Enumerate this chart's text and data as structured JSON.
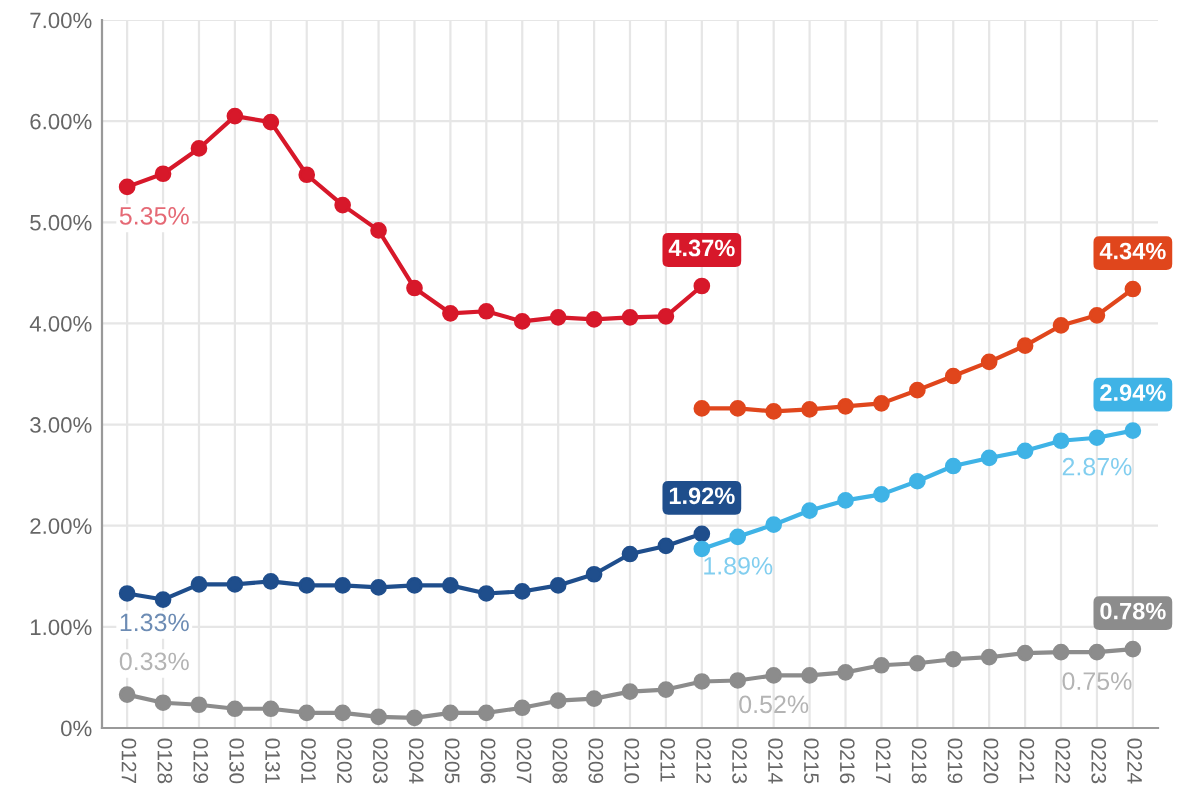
{
  "chart_data": {
    "type": "line",
    "categories": [
      "0127",
      "0128",
      "0129",
      "0130",
      "0131",
      "0201",
      "0202",
      "0203",
      "0204",
      "0205",
      "0206",
      "0207",
      "0208",
      "0209",
      "0210",
      "0211",
      "0212",
      "0213",
      "0214",
      "0215",
      "0216",
      "0217",
      "0218",
      "0219",
      "0220",
      "0221",
      "0222",
      "0223",
      "0224"
    ],
    "series": [
      {
        "color": "#d7182a",
        "values": [
          5.35,
          5.48,
          5.73,
          6.05,
          5.99,
          5.47,
          5.17,
          4.92,
          4.35,
          4.1,
          4.12,
          4.02,
          4.06,
          4.04,
          4.06,
          4.07,
          4.37,
          null,
          null,
          null,
          null,
          null,
          null,
          null,
          null,
          null,
          null,
          null,
          null
        ],
        "value_labels": [
          "5.35%",
          null,
          null,
          null,
          null,
          null,
          null,
          null,
          null,
          null,
          null,
          null,
          null,
          null,
          null,
          null,
          "4.37%",
          null,
          null,
          null,
          null,
          null,
          null,
          null,
          null,
          null,
          null,
          null,
          null
        ]
      },
      {
        "color": "#1f4e8c",
        "values": [
          1.33,
          1.27,
          1.42,
          1.42,
          1.45,
          1.41,
          1.41,
          1.39,
          1.41,
          1.41,
          1.33,
          1.35,
          1.41,
          1.52,
          1.72,
          1.8,
          1.92,
          null,
          null,
          null,
          null,
          null,
          null,
          null,
          null,
          null,
          null,
          null,
          null
        ],
        "value_labels": [
          "1.33%",
          null,
          null,
          null,
          null,
          null,
          null,
          null,
          null,
          null,
          null,
          null,
          null,
          null,
          null,
          null,
          "1.92%",
          null,
          null,
          null,
          null,
          null,
          null,
          null,
          null,
          null,
          null,
          null,
          null
        ]
      },
      {
        "color": "#8c8c8c",
        "values": [
          0.33,
          0.25,
          0.23,
          0.19,
          0.19,
          0.15,
          0.15,
          0.11,
          0.1,
          0.15,
          0.15,
          0.2,
          0.27,
          0.29,
          0.36,
          0.38,
          0.46,
          0.47,
          0.52,
          0.52,
          0.55,
          0.62,
          0.64,
          0.68,
          0.7,
          0.74,
          0.75,
          0.75,
          0.78
        ],
        "value_labels": [
          "0.33%",
          null,
          null,
          null,
          null,
          null,
          null,
          null,
          null,
          null,
          null,
          null,
          null,
          null,
          null,
          null,
          null,
          null,
          "0.52%",
          null,
          null,
          null,
          null,
          null,
          null,
          null,
          null,
          "0.75%",
          "0.78%"
        ]
      },
      {
        "color": "#e0461c",
        "values": [
          null,
          null,
          null,
          null,
          null,
          null,
          null,
          null,
          null,
          null,
          null,
          null,
          null,
          null,
          null,
          null,
          3.16,
          3.16,
          3.13,
          3.15,
          3.18,
          3.21,
          3.34,
          3.48,
          3.62,
          3.78,
          3.98,
          4.08,
          4.34
        ],
        "value_labels": [
          null,
          null,
          null,
          null,
          null,
          null,
          null,
          null,
          null,
          null,
          null,
          null,
          null,
          null,
          null,
          null,
          null,
          null,
          null,
          null,
          null,
          null,
          null,
          null,
          null,
          null,
          null,
          null,
          "4.34%"
        ]
      },
      {
        "color": "#3fb3e6",
        "values": [
          null,
          null,
          null,
          null,
          null,
          null,
          null,
          null,
          null,
          null,
          null,
          null,
          null,
          null,
          null,
          null,
          1.77,
          1.89,
          2.01,
          2.15,
          2.25,
          2.31,
          2.44,
          2.59,
          2.67,
          2.74,
          2.84,
          2.87,
          2.94
        ],
        "value_labels": [
          null,
          null,
          null,
          null,
          null,
          null,
          null,
          null,
          null,
          null,
          null,
          null,
          null,
          null,
          null,
          null,
          null,
          "1.89%",
          null,
          null,
          null,
          null,
          null,
          null,
          null,
          null,
          null,
          "2.87%",
          "2.94%"
        ]
      }
    ],
    "ylim": [
      0,
      7
    ],
    "yticks": [
      {
        "value": 0,
        "label": "0%"
      },
      {
        "value": 1,
        "label": "1.00%"
      },
      {
        "value": 2,
        "label": "2.00%"
      },
      {
        "value": 3,
        "label": "3.00%"
      },
      {
        "value": 4,
        "label": "4.00%"
      },
      {
        "value": 5,
        "label": "5.00%"
      },
      {
        "value": 6,
        "label": "6.00%"
      },
      {
        "value": 7,
        "label": "7.00%"
      }
    ],
    "grid": true,
    "marker": "circle",
    "line_style": "solid",
    "legend": false
  }
}
